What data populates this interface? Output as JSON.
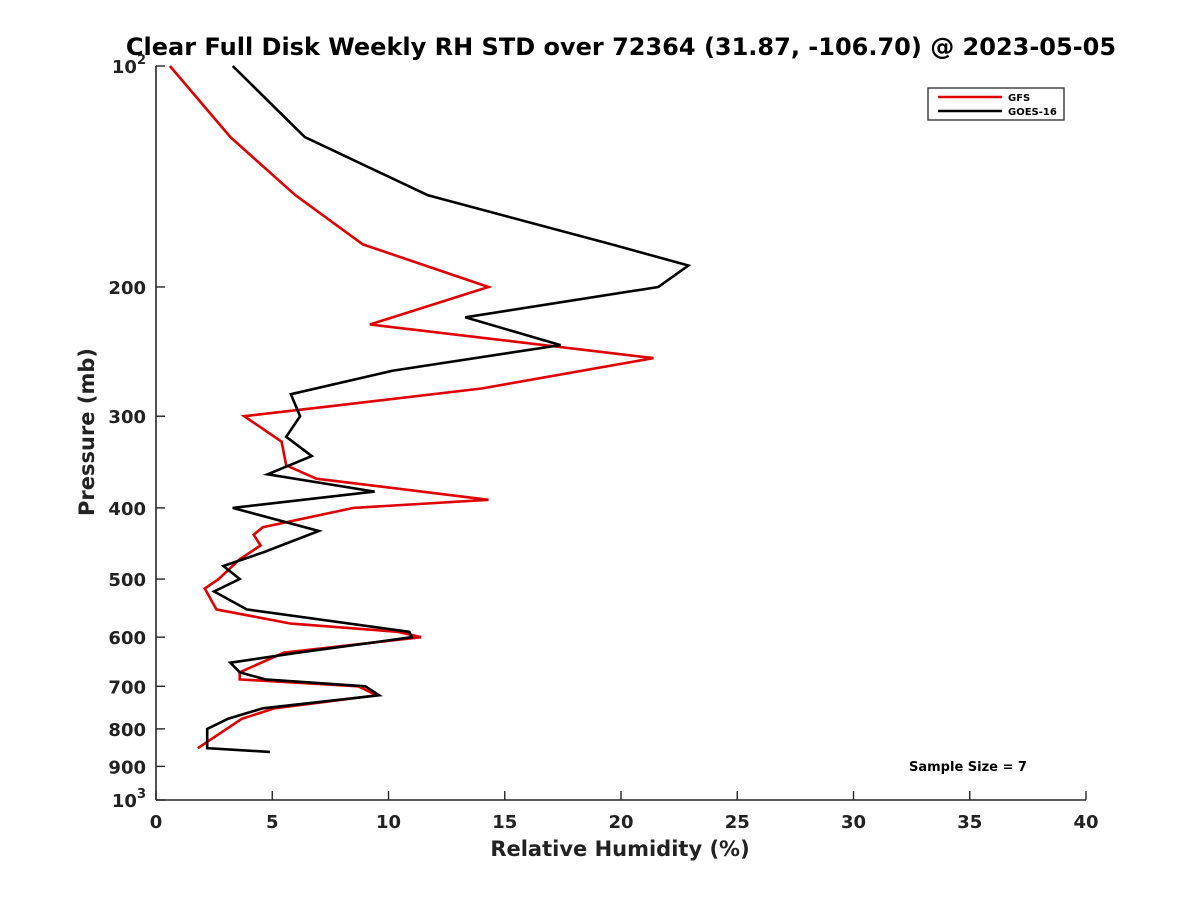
{
  "chart_data": {
    "type": "line",
    "title": "Clear Full Disk Weekly RH STD over 72364 (31.87, -106.70) @ 2023-05-05",
    "xlabel": "Relative Humidity (%)",
    "ylabel": "Pressure (mb)",
    "xlim": [
      0,
      40
    ],
    "ylim": [
      100,
      1000
    ],
    "yscale": "log",
    "y_reversed": true,
    "grid": false,
    "legend_position": "top-right",
    "x_ticks": [
      {
        "value": 0,
        "label": "0"
      },
      {
        "value": 5,
        "label": "5"
      },
      {
        "value": 10,
        "label": "10"
      },
      {
        "value": 15,
        "label": "15"
      },
      {
        "value": 20,
        "label": "20"
      },
      {
        "value": 25,
        "label": "25"
      },
      {
        "value": 30,
        "label": "30"
      },
      {
        "value": 35,
        "label": "35"
      },
      {
        "value": 40,
        "label": "40"
      }
    ],
    "y_ticks": [
      {
        "value": 100,
        "base": "10",
        "exp": "2"
      },
      {
        "value": 200,
        "label": "200"
      },
      {
        "value": 300,
        "label": "300"
      },
      {
        "value": 400,
        "label": "400"
      },
      {
        "value": 500,
        "label": "500"
      },
      {
        "value": 600,
        "label": "600"
      },
      {
        "value": 700,
        "label": "700"
      },
      {
        "value": 800,
        "label": "800"
      },
      {
        "value": 900,
        "label": "900"
      },
      {
        "value": 1000,
        "base": "10",
        "exp": "3"
      }
    ],
    "series": [
      {
        "name": "GFS",
        "color": "#e00000",
        "points": [
          [
            0.6,
            100
          ],
          [
            3.2,
            125
          ],
          [
            6.0,
            150
          ],
          [
            8.9,
            175
          ],
          [
            14.3,
            200
          ],
          [
            9.2,
            225
          ],
          [
            21.4,
            250
          ],
          [
            14.0,
            275
          ],
          [
            7.8,
            290
          ],
          [
            3.8,
            300
          ],
          [
            5.4,
            325
          ],
          [
            5.6,
            350
          ],
          [
            6.9,
            365
          ],
          [
            14.3,
            390
          ],
          [
            8.5,
            400
          ],
          [
            4.6,
            425
          ],
          [
            4.2,
            435
          ],
          [
            4.5,
            450
          ],
          [
            3.6,
            470
          ],
          [
            2.7,
            500
          ],
          [
            2.1,
            515
          ],
          [
            2.6,
            550
          ],
          [
            5.8,
            575
          ],
          [
            10.4,
            590
          ],
          [
            11.4,
            600
          ],
          [
            5.5,
            630
          ],
          [
            3.6,
            670
          ],
          [
            3.6,
            685
          ],
          [
            8.7,
            700
          ],
          [
            9.5,
            720
          ],
          [
            5.1,
            750
          ],
          [
            3.7,
            775
          ],
          [
            1.8,
            850
          ]
        ]
      },
      {
        "name": "GOES-16",
        "color": "#000000",
        "points": [
          [
            3.3,
            100
          ],
          [
            6.4,
            125
          ],
          [
            11.7,
            150
          ],
          [
            19.6,
            175
          ],
          [
            22.9,
            187
          ],
          [
            21.6,
            200
          ],
          [
            13.3,
            220
          ],
          [
            17.4,
            240
          ],
          [
            10.2,
            260
          ],
          [
            5.8,
            280
          ],
          [
            6.2,
            300
          ],
          [
            5.6,
            320
          ],
          [
            6.7,
            340
          ],
          [
            4.8,
            360
          ],
          [
            9.4,
            380
          ],
          [
            3.3,
            400
          ],
          [
            7.0,
            430
          ],
          [
            4.6,
            460
          ],
          [
            2.9,
            480
          ],
          [
            3.6,
            500
          ],
          [
            2.5,
            520
          ],
          [
            3.9,
            550
          ],
          [
            10.9,
            590
          ],
          [
            11.0,
            600
          ],
          [
            6.1,
            630
          ],
          [
            3.2,
            650
          ],
          [
            3.6,
            670
          ],
          [
            4.7,
            685
          ],
          [
            9.0,
            700
          ],
          [
            9.6,
            720
          ],
          [
            4.6,
            750
          ],
          [
            3.1,
            775
          ],
          [
            2.2,
            800
          ],
          [
            2.2,
            850
          ],
          [
            4.9,
            860
          ]
        ]
      }
    ],
    "annotation": "Sample Size = 7"
  }
}
